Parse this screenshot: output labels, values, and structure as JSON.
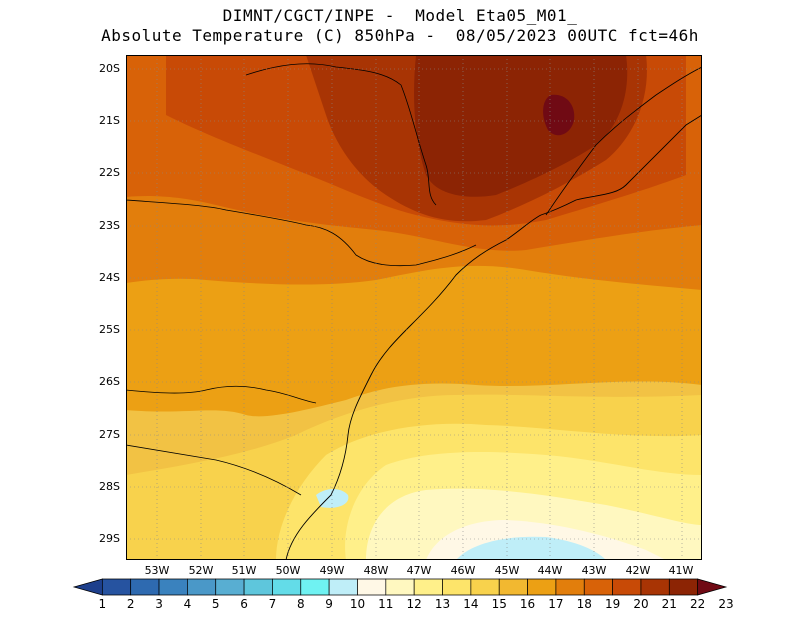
{
  "header": {
    "line1": "DIMNT/CGCT/INPE -  Model Eta05_M01_",
    "line2": "Absolute Temperature (C) 850hPa -  08/05/2023 00UTC fct=46h"
  },
  "map": {
    "lat_labels": [
      "20S",
      "21S",
      "22S",
      "23S",
      "24S",
      "25S",
      "26S",
      "27S",
      "28S",
      "29S"
    ],
    "lon_labels": [
      "53W",
      "52W",
      "51W",
      "50W",
      "49W",
      "48W",
      "47W",
      "46W",
      "45W",
      "44W",
      "43W",
      "42W",
      "41W"
    ]
  },
  "colorbar": {
    "labels": [
      "1",
      "2",
      "3",
      "4",
      "5",
      "6",
      "7",
      "8",
      "9",
      "10",
      "11",
      "12",
      "13",
      "14",
      "15",
      "16",
      "17",
      "18",
      "19",
      "20",
      "21",
      "22",
      "23"
    ],
    "colors": [
      "#1d3f8c",
      "#2653a0",
      "#2e6ab0",
      "#3a82be",
      "#4a98c8",
      "#58aed2",
      "#5ec6dc",
      "#63dce8",
      "#6ff2f2",
      "#bfeef8",
      "#fff8e6",
      "#fff8c0",
      "#fff08a",
      "#fde46a",
      "#f8d24c",
      "#f2b830",
      "#eca014",
      "#e27e0c",
      "#d86208",
      "#c84a06",
      "#a83404",
      "#8c2404",
      "#700a14"
    ]
  },
  "regions": [
    {
      "name": "background",
      "color": "#f2c244"
    },
    {
      "name": "warm-north",
      "color": "#d86208"
    },
    {
      "name": "hot-core",
      "color": "#8c2404"
    },
    {
      "name": "cool-south",
      "color": "#fff08a"
    }
  ]
}
